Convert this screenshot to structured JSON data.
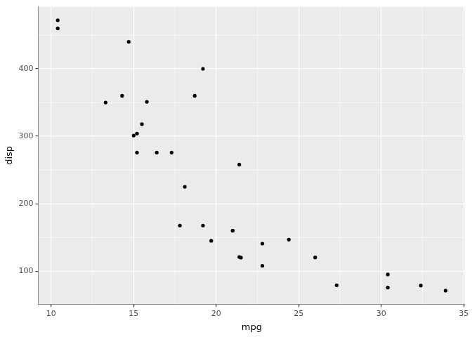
{
  "chart_data": {
    "type": "scatter",
    "x_label": "mpg",
    "y_label": "disp",
    "x": [
      21.0,
      21.0,
      22.8,
      21.4,
      18.7,
      18.1,
      14.3,
      24.4,
      22.8,
      19.2,
      17.8,
      16.4,
      17.3,
      15.2,
      10.4,
      10.4,
      14.7,
      32.4,
      30.4,
      33.9,
      21.5,
      15.5,
      15.2,
      13.3,
      19.2,
      27.3,
      26.0,
      30.4,
      15.8,
      19.7,
      15.0,
      21.4
    ],
    "values": [
      160,
      160,
      108,
      258,
      360,
      225,
      360,
      146.7,
      140.8,
      167.6,
      167.6,
      275.8,
      275.8,
      275.8,
      472,
      460,
      440,
      78.7,
      75.7,
      71.1,
      120.1,
      318,
      304,
      350,
      400,
      79,
      120.3,
      95.1,
      351,
      145,
      301,
      121
    ],
    "color": "#000000",
    "xlim": [
      9.225,
      35.075
    ],
    "xticks": [
      10,
      15,
      20,
      25,
      30,
      35
    ],
    "ylim": [
      51.055,
      492.045
    ],
    "yticks": [
      100,
      200,
      300,
      400
    ],
    "grid": true
  }
}
